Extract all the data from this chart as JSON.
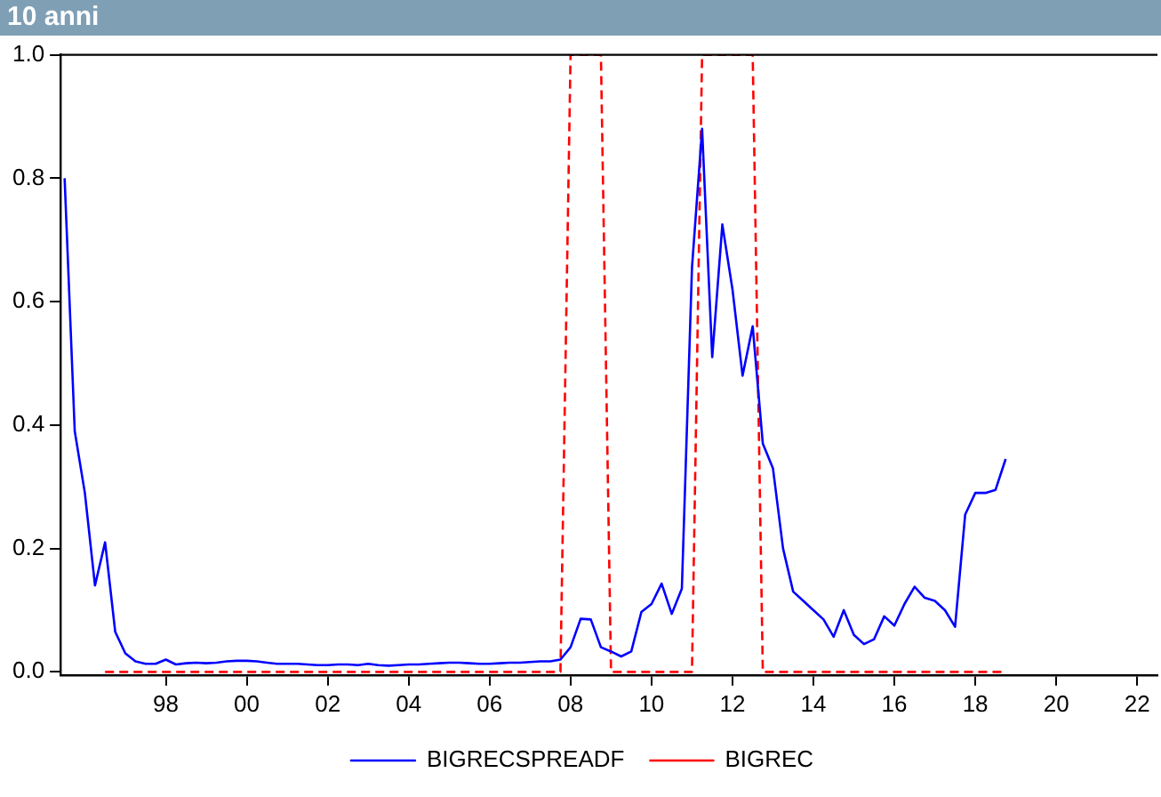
{
  "chart_data": {
    "type": "line",
    "title": "10 anni",
    "xlim": [
      1995.4,
      2022.5
    ],
    "xticks": [
      {
        "value": 1998,
        "label": "98"
      },
      {
        "value": 2000,
        "label": "00"
      },
      {
        "value": 2002,
        "label": "02"
      },
      {
        "value": 2004,
        "label": "04"
      },
      {
        "value": 2006,
        "label": "06"
      },
      {
        "value": 2008,
        "label": "08"
      },
      {
        "value": 2010,
        "label": "10"
      },
      {
        "value": 2012,
        "label": "12"
      },
      {
        "value": 2014,
        "label": "14"
      },
      {
        "value": 2016,
        "label": "16"
      },
      {
        "value": 2018,
        "label": "18"
      },
      {
        "value": 2020,
        "label": "20"
      },
      {
        "value": 2022,
        "label": "22"
      }
    ],
    "ylim": [
      -0.005,
      1.0
    ],
    "yticks": [
      {
        "value": 0,
        "label": "0.0"
      },
      {
        "value": 0.2,
        "label": "0.2"
      },
      {
        "value": 0.4,
        "label": "0.4"
      },
      {
        "value": 0.6,
        "label": "0.6"
      },
      {
        "value": 0.8,
        "label": "0.8"
      },
      {
        "value": 1.0,
        "label": "1.0"
      }
    ],
    "grid": false,
    "legend": "bottom",
    "marker": "none",
    "series": [
      {
        "name": "BIGRECSPREADF",
        "color": "#0000ff",
        "line_style": "solid",
        "x": [
          1995.5,
          1995.75,
          1996,
          1996.25,
          1996.5,
          1996.75,
          1997,
          1997.25,
          1997.5,
          1997.75,
          1998,
          1998.25,
          1998.5,
          1998.75,
          1999,
          1999.25,
          1999.5,
          1999.75,
          2000,
          2000.25,
          2000.5,
          2000.75,
          2001,
          2001.25,
          2001.5,
          2001.75,
          2002,
          2002.25,
          2002.5,
          2002.75,
          2003,
          2003.25,
          2003.5,
          2003.75,
          2004,
          2004.25,
          2004.5,
          2004.75,
          2005,
          2005.25,
          2005.5,
          2005.75,
          2006,
          2006.25,
          2006.5,
          2006.75,
          2007,
          2007.25,
          2007.5,
          2007.75,
          2008,
          2008.25,
          2008.5,
          2008.75,
          2009,
          2009.25,
          2009.5,
          2009.75,
          2010,
          2010.25,
          2010.5,
          2010.75,
          2011,
          2011.25,
          2011.5,
          2011.75,
          2012,
          2012.25,
          2012.5,
          2012.75,
          2013,
          2013.25,
          2013.5,
          2013.75,
          2014,
          2014.25,
          2014.5,
          2014.75,
          2015,
          2015.25,
          2015.5,
          2015.75,
          2016,
          2016.25,
          2016.5,
          2016.75,
          2017,
          2017.25,
          2017.5,
          2017.75,
          2018,
          2018.25,
          2018.5,
          2018.75
        ],
        "values": [
          0.8,
          0.39,
          0.29,
          0.14,
          0.21,
          0.065,
          0.03,
          0.017,
          0.013,
          0.013,
          0.02,
          0.012,
          0.014,
          0.015,
          0.014,
          0.015,
          0.017,
          0.018,
          0.018,
          0.017,
          0.015,
          0.013,
          0.013,
          0.013,
          0.012,
          0.011,
          0.011,
          0.012,
          0.012,
          0.011,
          0.013,
          0.011,
          0.01,
          0.011,
          0.012,
          0.012,
          0.013,
          0.014,
          0.015,
          0.015,
          0.014,
          0.013,
          0.013,
          0.014,
          0.015,
          0.015,
          0.016,
          0.017,
          0.017,
          0.02,
          0.04,
          0.086,
          0.085,
          0.04,
          0.033,
          0.025,
          0.033,
          0.097,
          0.11,
          0.143,
          0.094,
          0.135,
          0.655,
          0.88,
          0.51,
          0.725,
          0.62,
          0.48,
          0.56,
          0.37,
          0.33,
          0.2,
          0.13,
          0.115,
          0.1,
          0.085,
          0.057,
          0.1,
          0.06,
          0.045,
          0.053,
          0.09,
          0.075,
          0.11,
          0.138,
          0.12,
          0.115,
          0.1,
          0.073,
          0.255,
          0.29,
          0.29,
          0.295,
          0.345
        ]
      },
      {
        "name": "BIGREC",
        "color": "#ff0000",
        "line_style": "dashed",
        "x": [
          1996.5,
          2007.75,
          2008,
          2008.75,
          2009,
          2011,
          2011.25,
          2012.5,
          2012.75,
          2018.75
        ],
        "values": [
          0,
          0,
          1,
          1,
          0,
          0,
          1,
          1,
          0,
          0
        ]
      }
    ]
  }
}
